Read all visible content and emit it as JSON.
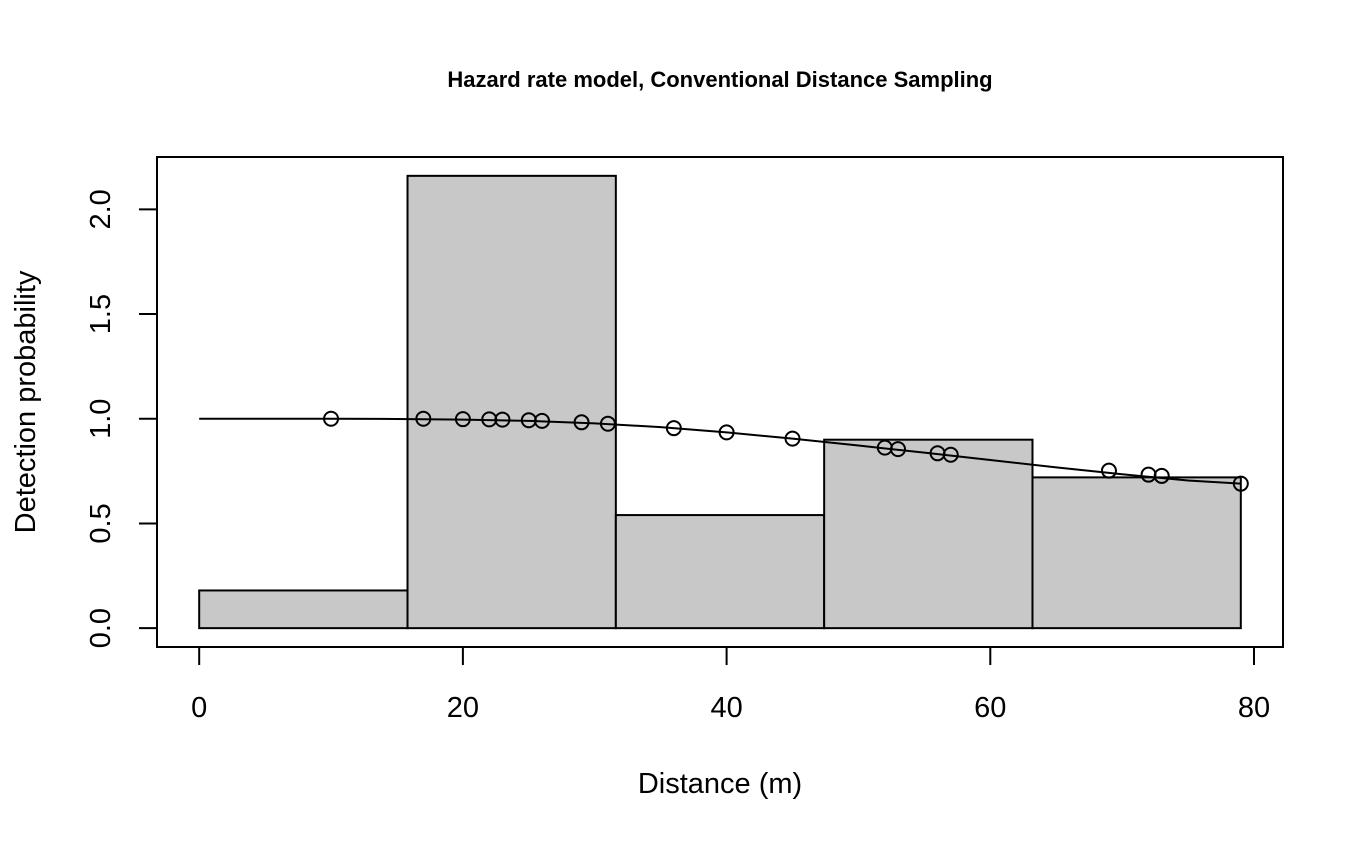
{
  "chart_data": {
    "type": "bar",
    "title": "Hazard rate model, Conventional Distance Sampling",
    "xlabel": "Distance (m)",
    "ylabel": "Detection probability",
    "xlim": [
      -3.2,
      82.2
    ],
    "ylim": [
      -0.09,
      2.25
    ],
    "x_ticks": [
      0,
      20,
      40,
      60,
      80
    ],
    "y_ticks": [
      0.0,
      0.5,
      1.0,
      1.5,
      2.0
    ],
    "x_tick_labels": [
      "0",
      "20",
      "40",
      "60",
      "80"
    ],
    "y_tick_labels": [
      "0.0",
      "0.5",
      "1.0",
      "1.5",
      "2.0"
    ],
    "grid": false,
    "colors": {
      "bar_fill": "#c8c8c8",
      "line": "#000000"
    },
    "histogram": {
      "bin_edges": [
        0,
        15.8,
        31.6,
        47.4,
        63.2,
        79
      ],
      "values": [
        0.18,
        2.16,
        0.54,
        0.9,
        0.72
      ]
    },
    "fitted_curve": {
      "name": "",
      "x": [
        0,
        5,
        10,
        15,
        20,
        25,
        30,
        35,
        40,
        45,
        50,
        55,
        60,
        65,
        70,
        75,
        79
      ],
      "y": [
        1.0,
        1.0,
        1.0,
        0.999,
        0.996,
        0.99,
        0.978,
        0.96,
        0.935,
        0.905,
        0.872,
        0.838,
        0.803,
        0.768,
        0.735,
        0.705,
        0.69
      ]
    },
    "points": {
      "x": [
        10,
        17,
        20,
        22,
        23,
        25,
        26,
        29,
        31,
        36,
        40,
        45,
        52,
        53,
        56,
        57,
        69,
        72,
        73,
        79
      ],
      "y": [
        1.0,
        1.0,
        0.998,
        0.997,
        0.996,
        0.993,
        0.99,
        0.983,
        0.976,
        0.955,
        0.935,
        0.905,
        0.862,
        0.855,
        0.835,
        0.828,
        0.752,
        0.733,
        0.727,
        0.69
      ]
    }
  }
}
